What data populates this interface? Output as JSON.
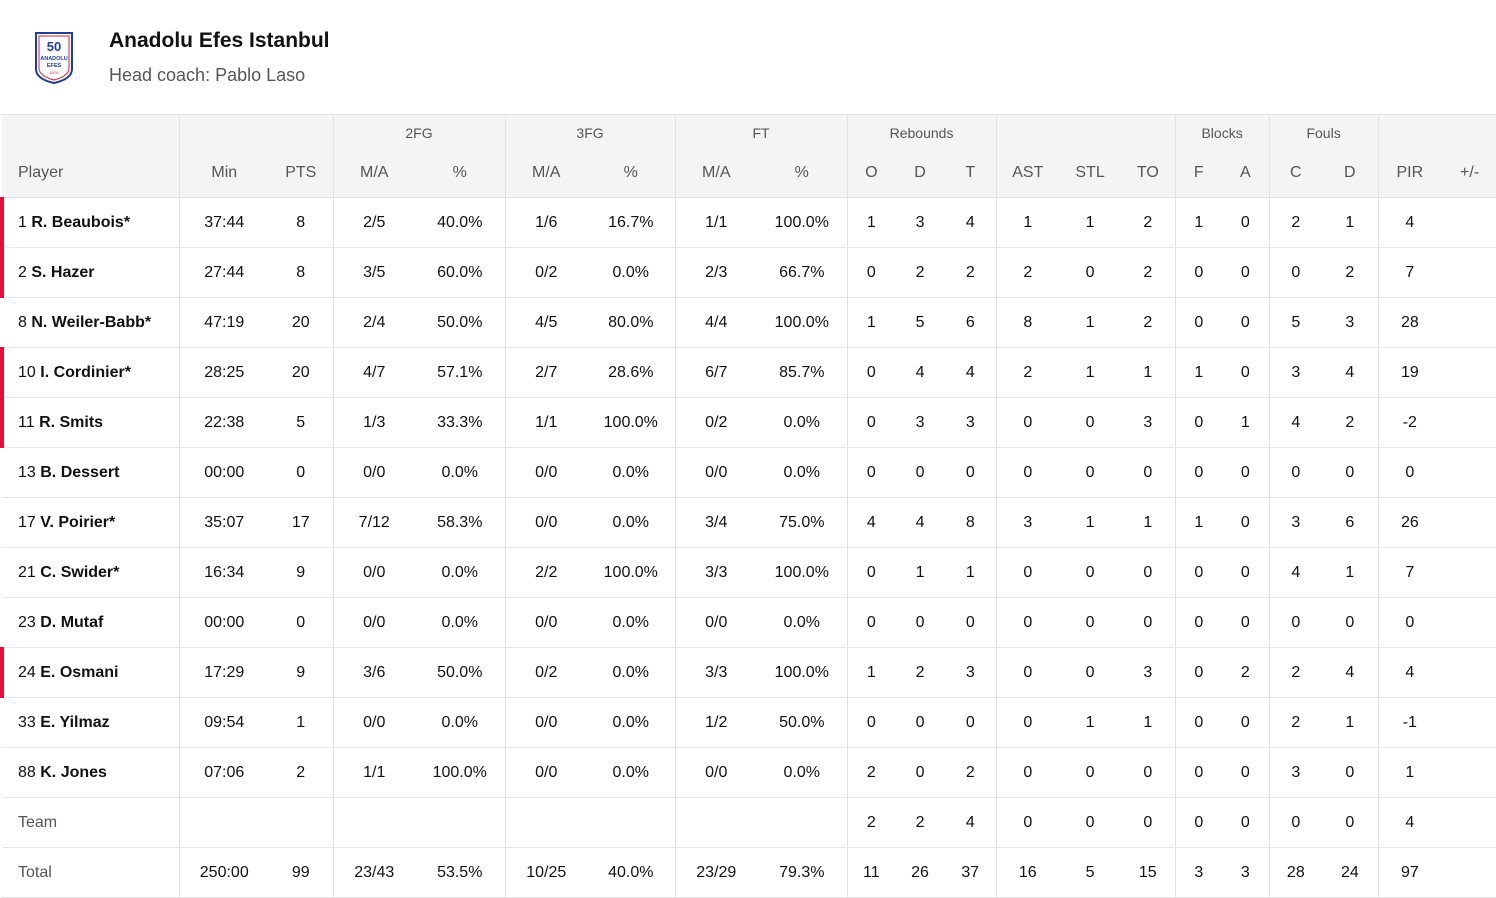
{
  "team": {
    "name": "Anadolu Efes Istanbul",
    "coach_label": "Head coach:",
    "coach_name": "Pablo Laso",
    "logo": {
      "text_top": "50",
      "text_mid": "ANADOLU",
      "text_low": "EFES",
      "year": "1976",
      "colors": {
        "blue": "#1f3f8f",
        "red": "#d6223a"
      }
    }
  },
  "headers": {
    "groups": {
      "fg2": "2FG",
      "fg3": "3FG",
      "ft": "FT",
      "reb": "Rebounds",
      "blk": "Blocks",
      "fouls": "Fouls"
    },
    "cols": {
      "player": "Player",
      "min": "Min",
      "pts": "PTS",
      "fg2_ma": "M/A",
      "fg2_pct": "%",
      "fg3_ma": "M/A",
      "fg3_pct": "%",
      "ft_ma": "M/A",
      "ft_pct": "%",
      "reb_o": "O",
      "reb_d": "D",
      "reb_t": "T",
      "ast": "AST",
      "stl": "STL",
      "to": "TO",
      "blk_f": "F",
      "blk_a": "A",
      "fouls_c": "C",
      "fouls_d": "D",
      "pir": "PIR",
      "pm": "+/-"
    }
  },
  "colors": {
    "starter_marker": "#e0103c",
    "header_bg": "#f4f4f4"
  },
  "players": [
    {
      "num": "1",
      "name": "R. Beaubois*",
      "starter": true,
      "min": "37:44",
      "pts": "8",
      "fg2_ma": "2/5",
      "fg2_pct": "40.0%",
      "fg3_ma": "1/6",
      "fg3_pct": "16.7%",
      "ft_ma": "1/1",
      "ft_pct": "100.0%",
      "o": "1",
      "d": "3",
      "t": "4",
      "ast": "1",
      "stl": "1",
      "to": "2",
      "bf": "1",
      "ba": "0",
      "fc": "2",
      "fd": "1",
      "pir": "4",
      "pm": ""
    },
    {
      "num": "2",
      "name": "S. Hazer",
      "starter": true,
      "min": "27:44",
      "pts": "8",
      "fg2_ma": "3/5",
      "fg2_pct": "60.0%",
      "fg3_ma": "0/2",
      "fg3_pct": "0.0%",
      "ft_ma": "2/3",
      "ft_pct": "66.7%",
      "o": "0",
      "d": "2",
      "t": "2",
      "ast": "2",
      "stl": "0",
      "to": "2",
      "bf": "0",
      "ba": "0",
      "fc": "0",
      "fd": "2",
      "pir": "7",
      "pm": ""
    },
    {
      "num": "8",
      "name": "N. Weiler-Babb*",
      "starter": false,
      "min": "47:19",
      "pts": "20",
      "fg2_ma": "2/4",
      "fg2_pct": "50.0%",
      "fg3_ma": "4/5",
      "fg3_pct": "80.0%",
      "ft_ma": "4/4",
      "ft_pct": "100.0%",
      "o": "1",
      "d": "5",
      "t": "6",
      "ast": "8",
      "stl": "1",
      "to": "2",
      "bf": "0",
      "ba": "0",
      "fc": "5",
      "fd": "3",
      "pir": "28",
      "pm": ""
    },
    {
      "num": "10",
      "name": "I. Cordinier*",
      "starter": true,
      "min": "28:25",
      "pts": "20",
      "fg2_ma": "4/7",
      "fg2_pct": "57.1%",
      "fg3_ma": "2/7",
      "fg3_pct": "28.6%",
      "ft_ma": "6/7",
      "ft_pct": "85.7%",
      "o": "0",
      "d": "4",
      "t": "4",
      "ast": "2",
      "stl": "1",
      "to": "1",
      "bf": "1",
      "ba": "0",
      "fc": "3",
      "fd": "4",
      "pir": "19",
      "pm": ""
    },
    {
      "num": "11",
      "name": "R. Smits",
      "starter": true,
      "min": "22:38",
      "pts": "5",
      "fg2_ma": "1/3",
      "fg2_pct": "33.3%",
      "fg3_ma": "1/1",
      "fg3_pct": "100.0%",
      "ft_ma": "0/2",
      "ft_pct": "0.0%",
      "o": "0",
      "d": "3",
      "t": "3",
      "ast": "0",
      "stl": "0",
      "to": "3",
      "bf": "0",
      "ba": "1",
      "fc": "4",
      "fd": "2",
      "pir": "-2",
      "pm": ""
    },
    {
      "num": "13",
      "name": "B. Dessert",
      "starter": false,
      "min": "00:00",
      "pts": "0",
      "fg2_ma": "0/0",
      "fg2_pct": "0.0%",
      "fg3_ma": "0/0",
      "fg3_pct": "0.0%",
      "ft_ma": "0/0",
      "ft_pct": "0.0%",
      "o": "0",
      "d": "0",
      "t": "0",
      "ast": "0",
      "stl": "0",
      "to": "0",
      "bf": "0",
      "ba": "0",
      "fc": "0",
      "fd": "0",
      "pir": "0",
      "pm": ""
    },
    {
      "num": "17",
      "name": "V. Poirier*",
      "starter": false,
      "min": "35:07",
      "pts": "17",
      "fg2_ma": "7/12",
      "fg2_pct": "58.3%",
      "fg3_ma": "0/0",
      "fg3_pct": "0.0%",
      "ft_ma": "3/4",
      "ft_pct": "75.0%",
      "o": "4",
      "d": "4",
      "t": "8",
      "ast": "3",
      "stl": "1",
      "to": "1",
      "bf": "1",
      "ba": "0",
      "fc": "3",
      "fd": "6",
      "pir": "26",
      "pm": ""
    },
    {
      "num": "21",
      "name": "C. Swider*",
      "starter": false,
      "min": "16:34",
      "pts": "9",
      "fg2_ma": "0/0",
      "fg2_pct": "0.0%",
      "fg3_ma": "2/2",
      "fg3_pct": "100.0%",
      "ft_ma": "3/3",
      "ft_pct": "100.0%",
      "o": "0",
      "d": "1",
      "t": "1",
      "ast": "0",
      "stl": "0",
      "to": "0",
      "bf": "0",
      "ba": "0",
      "fc": "4",
      "fd": "1",
      "pir": "7",
      "pm": ""
    },
    {
      "num": "23",
      "name": "D. Mutaf",
      "starter": false,
      "min": "00:00",
      "pts": "0",
      "fg2_ma": "0/0",
      "fg2_pct": "0.0%",
      "fg3_ma": "0/0",
      "fg3_pct": "0.0%",
      "ft_ma": "0/0",
      "ft_pct": "0.0%",
      "o": "0",
      "d": "0",
      "t": "0",
      "ast": "0",
      "stl": "0",
      "to": "0",
      "bf": "0",
      "ba": "0",
      "fc": "0",
      "fd": "0",
      "pir": "0",
      "pm": ""
    },
    {
      "num": "24",
      "name": "E. Osmani",
      "starter": true,
      "min": "17:29",
      "pts": "9",
      "fg2_ma": "3/6",
      "fg2_pct": "50.0%",
      "fg3_ma": "0/2",
      "fg3_pct": "0.0%",
      "ft_ma": "3/3",
      "ft_pct": "100.0%",
      "o": "1",
      "d": "2",
      "t": "3",
      "ast": "0",
      "stl": "0",
      "to": "3",
      "bf": "0",
      "ba": "2",
      "fc": "2",
      "fd": "4",
      "pir": "4",
      "pm": ""
    },
    {
      "num": "33",
      "name": "E. Yilmaz",
      "starter": false,
      "min": "09:54",
      "pts": "1",
      "fg2_ma": "0/0",
      "fg2_pct": "0.0%",
      "fg3_ma": "0/0",
      "fg3_pct": "0.0%",
      "ft_ma": "1/2",
      "ft_pct": "50.0%",
      "o": "0",
      "d": "0",
      "t": "0",
      "ast": "0",
      "stl": "1",
      "to": "1",
      "bf": "0",
      "ba": "0",
      "fc": "2",
      "fd": "1",
      "pir": "-1",
      "pm": ""
    },
    {
      "num": "88",
      "name": "K. Jones",
      "starter": false,
      "min": "07:06",
      "pts": "2",
      "fg2_ma": "1/1",
      "fg2_pct": "100.0%",
      "fg3_ma": "0/0",
      "fg3_pct": "0.0%",
      "ft_ma": "0/0",
      "ft_pct": "0.0%",
      "o": "2",
      "d": "0",
      "t": "2",
      "ast": "0",
      "stl": "0",
      "to": "0",
      "bf": "0",
      "ba": "0",
      "fc": "3",
      "fd": "0",
      "pir": "1",
      "pm": ""
    }
  ],
  "team_row": {
    "label": "Team",
    "min": "",
    "pts": "",
    "fg2_ma": "",
    "fg2_pct": "",
    "fg3_ma": "",
    "fg3_pct": "",
    "ft_ma": "",
    "ft_pct": "",
    "o": "2",
    "d": "2",
    "t": "4",
    "ast": "0",
    "stl": "0",
    "to": "0",
    "bf": "0",
    "ba": "0",
    "fc": "0",
    "fd": "0",
    "pir": "4",
    "pm": ""
  },
  "total_row": {
    "label": "Total",
    "min": "250:00",
    "pts": "99",
    "fg2_ma": "23/43",
    "fg2_pct": "53.5%",
    "fg3_ma": "10/25",
    "fg3_pct": "40.0%",
    "ft_ma": "23/29",
    "ft_pct": "79.3%",
    "o": "11",
    "d": "26",
    "t": "37",
    "ast": "16",
    "stl": "5",
    "to": "15",
    "bf": "3",
    "ba": "3",
    "fc": "28",
    "fd": "24",
    "pir": "97",
    "pm": ""
  }
}
